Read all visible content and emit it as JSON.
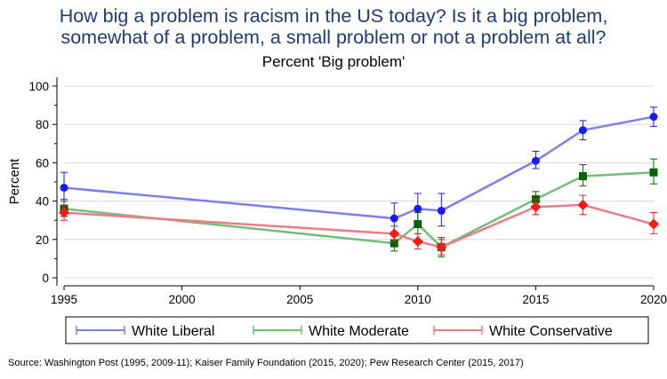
{
  "title_line1": "How big a problem is racism in the US today? Is it a big problem,",
  "title_line2": "somewhat of a problem, a small problem or not a problem at all?",
  "subtitle": "Percent 'Big problem'",
  "source": "Source: Washington Post (1995, 2009-11); Kaiser Family Foundation (2015, 2020); Pew Research Center (2015, 2017)",
  "chart_data": {
    "type": "line",
    "title": "How big a problem is racism in the US today? Is it a big problem, somewhat of a problem, a small problem or not a problem at all?",
    "subtitle": "Percent 'Big problem'",
    "xlabel": "",
    "ylabel": "Percent",
    "x": [
      1995,
      2009,
      2010,
      2011,
      2015,
      2017,
      2020
    ],
    "xlim": [
      1995,
      2020
    ],
    "ylim": [
      0,
      100
    ],
    "xticks": [
      1995,
      2000,
      2005,
      2010,
      2015,
      2020
    ],
    "yticks": [
      0,
      20,
      40,
      60,
      80,
      100
    ],
    "grid": "horizontal",
    "legend_position": "bottom",
    "series": [
      {
        "name": "White Liberal",
        "color": "#7b7ff0",
        "marker_color": "#1a1aff",
        "marker": "circle",
        "values": [
          47,
          31,
          36,
          35,
          61,
          77,
          84
        ],
        "err_low": [
          40,
          24,
          28,
          27,
          57,
          72,
          79
        ],
        "err_high": [
          55,
          39,
          44,
          44,
          66,
          82,
          89
        ]
      },
      {
        "name": "White Moderate",
        "color": "#6fbf78",
        "marker_color": "#006400",
        "marker": "square",
        "values": [
          36,
          18,
          28,
          16,
          41,
          53,
          55
        ],
        "err_low": [
          32,
          14,
          23,
          11,
          37,
          48,
          49
        ],
        "err_high": [
          41,
          22,
          34,
          21,
          45,
          59,
          62
        ]
      },
      {
        "name": "White Conservative",
        "color": "#f27a86",
        "marker_color": "#ff1a1a",
        "marker": "diamond",
        "values": [
          34,
          23,
          19,
          16,
          37,
          38,
          28
        ],
        "err_low": [
          30,
          19,
          15,
          12,
          33,
          33,
          23
        ],
        "err_high": [
          38,
          27,
          23,
          20,
          41,
          43,
          34
        ]
      }
    ]
  }
}
